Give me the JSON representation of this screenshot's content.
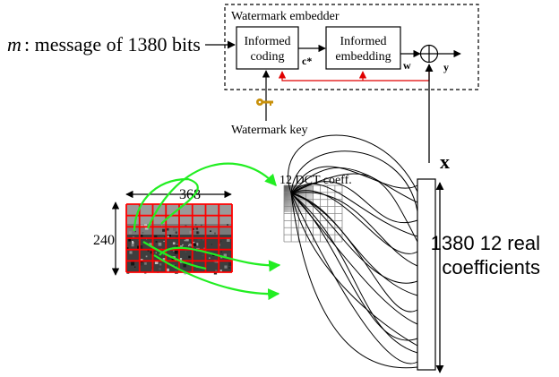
{
  "message": {
    "var": "m",
    "text": " : message of 1380 bits"
  },
  "embedder": {
    "title": "Watermark embedder",
    "coding": [
      "Informed",
      "coding"
    ],
    "embedding": [
      "Informed",
      "embedding"
    ],
    "c_label": "c*",
    "w_label": "w",
    "y_label": "y",
    "key_label": "Watermark key"
  },
  "x_label": "x",
  "dct_label": "12 DCT coeff.",
  "image": {
    "width_label": "368",
    "height_label": "240",
    "grid_cols": 8,
    "grid_rows": 6
  },
  "coefficients": {
    "line1": "1380  12 real",
    "line2": "coefficients"
  },
  "colors": {
    "red_feedback": "#e00000",
    "green_arrows": "#22ee22",
    "key": "#c8900a",
    "grid_red": "#ff0000"
  }
}
